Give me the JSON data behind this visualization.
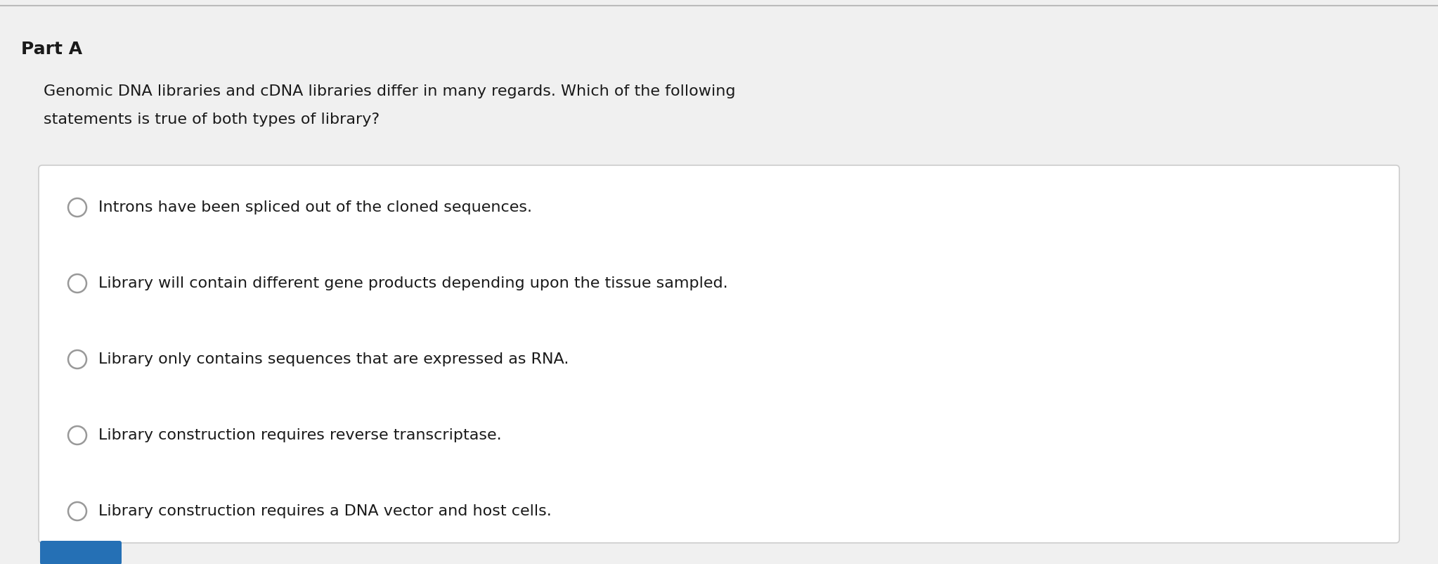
{
  "background_color": "#f0f0f0",
  "content_background": "#ffffff",
  "part_label": "Part A",
  "question_line1": "Genomic DNA libraries and cDNA libraries differ in many regards. Which of the following",
  "question_line2": "statements is true of both types of library?",
  "options": [
    "Introns have been spliced out of the cloned sequences.",
    "Library will contain different gene products depending upon the tissue sampled.",
    "Library only contains sequences that are expressed as RNA.",
    "Library construction requires reverse transcriptase.",
    "Library construction requires a DNA vector and host cells."
  ],
  "part_label_fontsize": 18,
  "question_fontsize": 16,
  "option_fontsize": 16,
  "part_label_color": "#1a1a1a",
  "question_color": "#1a1a1a",
  "option_color": "#1a1a1a",
  "circle_edge_color": "#999999",
  "circle_face_color": "#ffffff",
  "box_border_color": "#cccccc",
  "top_border_color": "#bbbbbb",
  "bottom_button_color": "#2570b5",
  "fig_width": 20.46,
  "fig_height": 8.02,
  "dpi": 100
}
